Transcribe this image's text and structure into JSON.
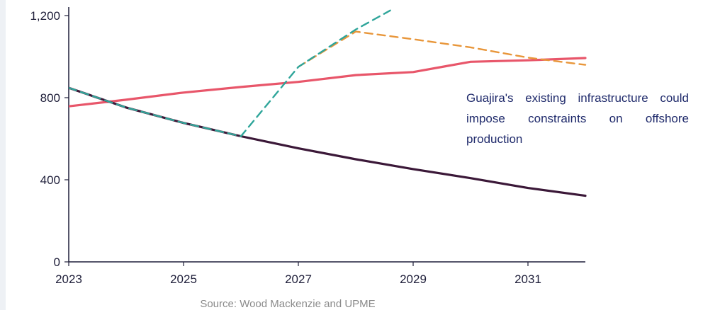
{
  "chart_data": {
    "type": "line",
    "x": [
      2023,
      2024,
      2025,
      2026,
      2027,
      2028,
      2029,
      2030,
      2031,
      2032
    ],
    "xticks": [
      "2023",
      "2025",
      "2027",
      "2029",
      "2031"
    ],
    "yticks": [
      "0",
      "400",
      "800",
      "1,200"
    ],
    "xlim": [
      2023,
      2032
    ],
    "ylim": [
      0,
      1200
    ],
    "grid": false,
    "series": [
      {
        "color": "#e8566a",
        "style": "solid",
        "x": [
          2023,
          2024,
          2025,
          2026,
          2027,
          2028,
          2029,
          2030,
          2031,
          2032
        ],
        "values": [
          758,
          790,
          825,
          852,
          877,
          910,
          925,
          975,
          982,
          993
        ]
      },
      {
        "color": "#3b1838",
        "style": "solid",
        "x": [
          2023,
          2024,
          2025,
          2026,
          2027,
          2028,
          2029,
          2030,
          2031,
          2032
        ],
        "values": [
          848,
          752,
          677,
          612,
          553,
          500,
          452,
          408,
          360,
          322
        ]
      },
      {
        "color": "#e8963a",
        "style": "dashed",
        "x": [
          2027,
          2028,
          2029,
          2030,
          2031,
          2032
        ],
        "values": [
          950,
          1122,
          1085,
          1045,
          995,
          960
        ]
      },
      {
        "color": "#e8566a",
        "style": "dashed",
        "x": [
          2023,
          2024,
          2025,
          2026
        ],
        "values": [
          848,
          752,
          677,
          612
        ]
      },
      {
        "color": "#2ea59a",
        "style": "dashed",
        "x": [
          2023,
          2024,
          2025,
          2026,
          2027,
          2028,
          2028.6
        ],
        "values": [
          848,
          752,
          677,
          612,
          950,
          1132,
          1225
        ]
      }
    ],
    "annotation": "Guajira's existing infrastructure could impose constraints on offshore production"
  },
  "source": "Source: Wood Mackenzie and UPME"
}
